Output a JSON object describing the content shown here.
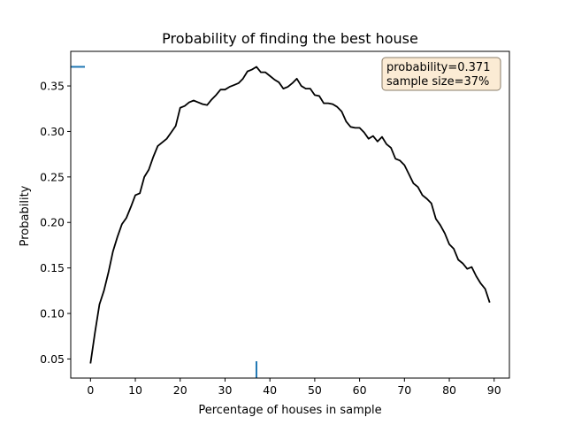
{
  "chart_data": {
    "type": "line",
    "title": "Probability of finding the best house",
    "xlabel": "Percentage of houses in sample",
    "ylabel": "Probability",
    "xlim": [
      -4.4,
      93.4
    ],
    "ylim": [
      0.029,
      0.388
    ],
    "xticks": [
      0,
      10,
      20,
      30,
      40,
      50,
      60,
      70,
      80,
      90
    ],
    "yticks": [
      0.05,
      0.1,
      0.15,
      0.2,
      0.25,
      0.3,
      0.35
    ],
    "grid": false,
    "colors": {
      "line": "#000000",
      "marker": "#1f77b4",
      "annotation_bg": "#fbebd4",
      "annotation_border": "#8a7d6a"
    },
    "series": [
      {
        "x": [
          0,
          1,
          2,
          3,
          4,
          5,
          6,
          7,
          8,
          9,
          10,
          11,
          12,
          13,
          14,
          15,
          16,
          17,
          18,
          19,
          20,
          21,
          22,
          23,
          24,
          25,
          26,
          27,
          28,
          29,
          30,
          31,
          32,
          33,
          34,
          35,
          36,
          37,
          38,
          39,
          40,
          41,
          42,
          43,
          44,
          45,
          46,
          47,
          48,
          49,
          50,
          51,
          52,
          53,
          54,
          55,
          56,
          57,
          58,
          59,
          60,
          61,
          62,
          63,
          64,
          65,
          66,
          67,
          68,
          69,
          70,
          71,
          72,
          73,
          74,
          75,
          76,
          77,
          78,
          79,
          80,
          81,
          82,
          83,
          84,
          85,
          86,
          87,
          88,
          89
        ],
        "y": [
          0.045,
          0.079,
          0.11,
          0.125,
          0.145,
          0.168,
          0.184,
          0.198,
          0.205,
          0.217,
          0.23,
          0.232,
          0.25,
          0.258,
          0.272,
          0.284,
          0.288,
          0.292,
          0.299,
          0.306,
          0.326,
          0.328,
          0.332,
          0.334,
          0.332,
          0.33,
          0.329,
          0.335,
          0.34,
          0.346,
          0.346,
          0.349,
          0.351,
          0.353,
          0.358,
          0.366,
          0.368,
          0.371,
          0.365,
          0.365,
          0.361,
          0.357,
          0.354,
          0.347,
          0.349,
          0.353,
          0.358,
          0.35,
          0.347,
          0.347,
          0.34,
          0.339,
          0.331,
          0.331,
          0.33,
          0.327,
          0.322,
          0.311,
          0.305,
          0.304,
          0.304,
          0.299,
          0.292,
          0.295,
          0.289,
          0.294,
          0.286,
          0.282,
          0.27,
          0.268,
          0.263,
          0.253,
          0.243,
          0.239,
          0.23,
          0.226,
          0.221,
          0.204,
          0.197,
          0.188,
          0.176,
          0.171,
          0.159,
          0.155,
          0.149,
          0.151,
          0.141,
          0.133,
          0.127,
          0.112
        ]
      }
    ],
    "markers": {
      "best_x": 37,
      "best_y": 0.371
    },
    "annotation": {
      "line1": "probability=0.371",
      "line2": "sample size=37%",
      "placement": "top-right"
    }
  }
}
